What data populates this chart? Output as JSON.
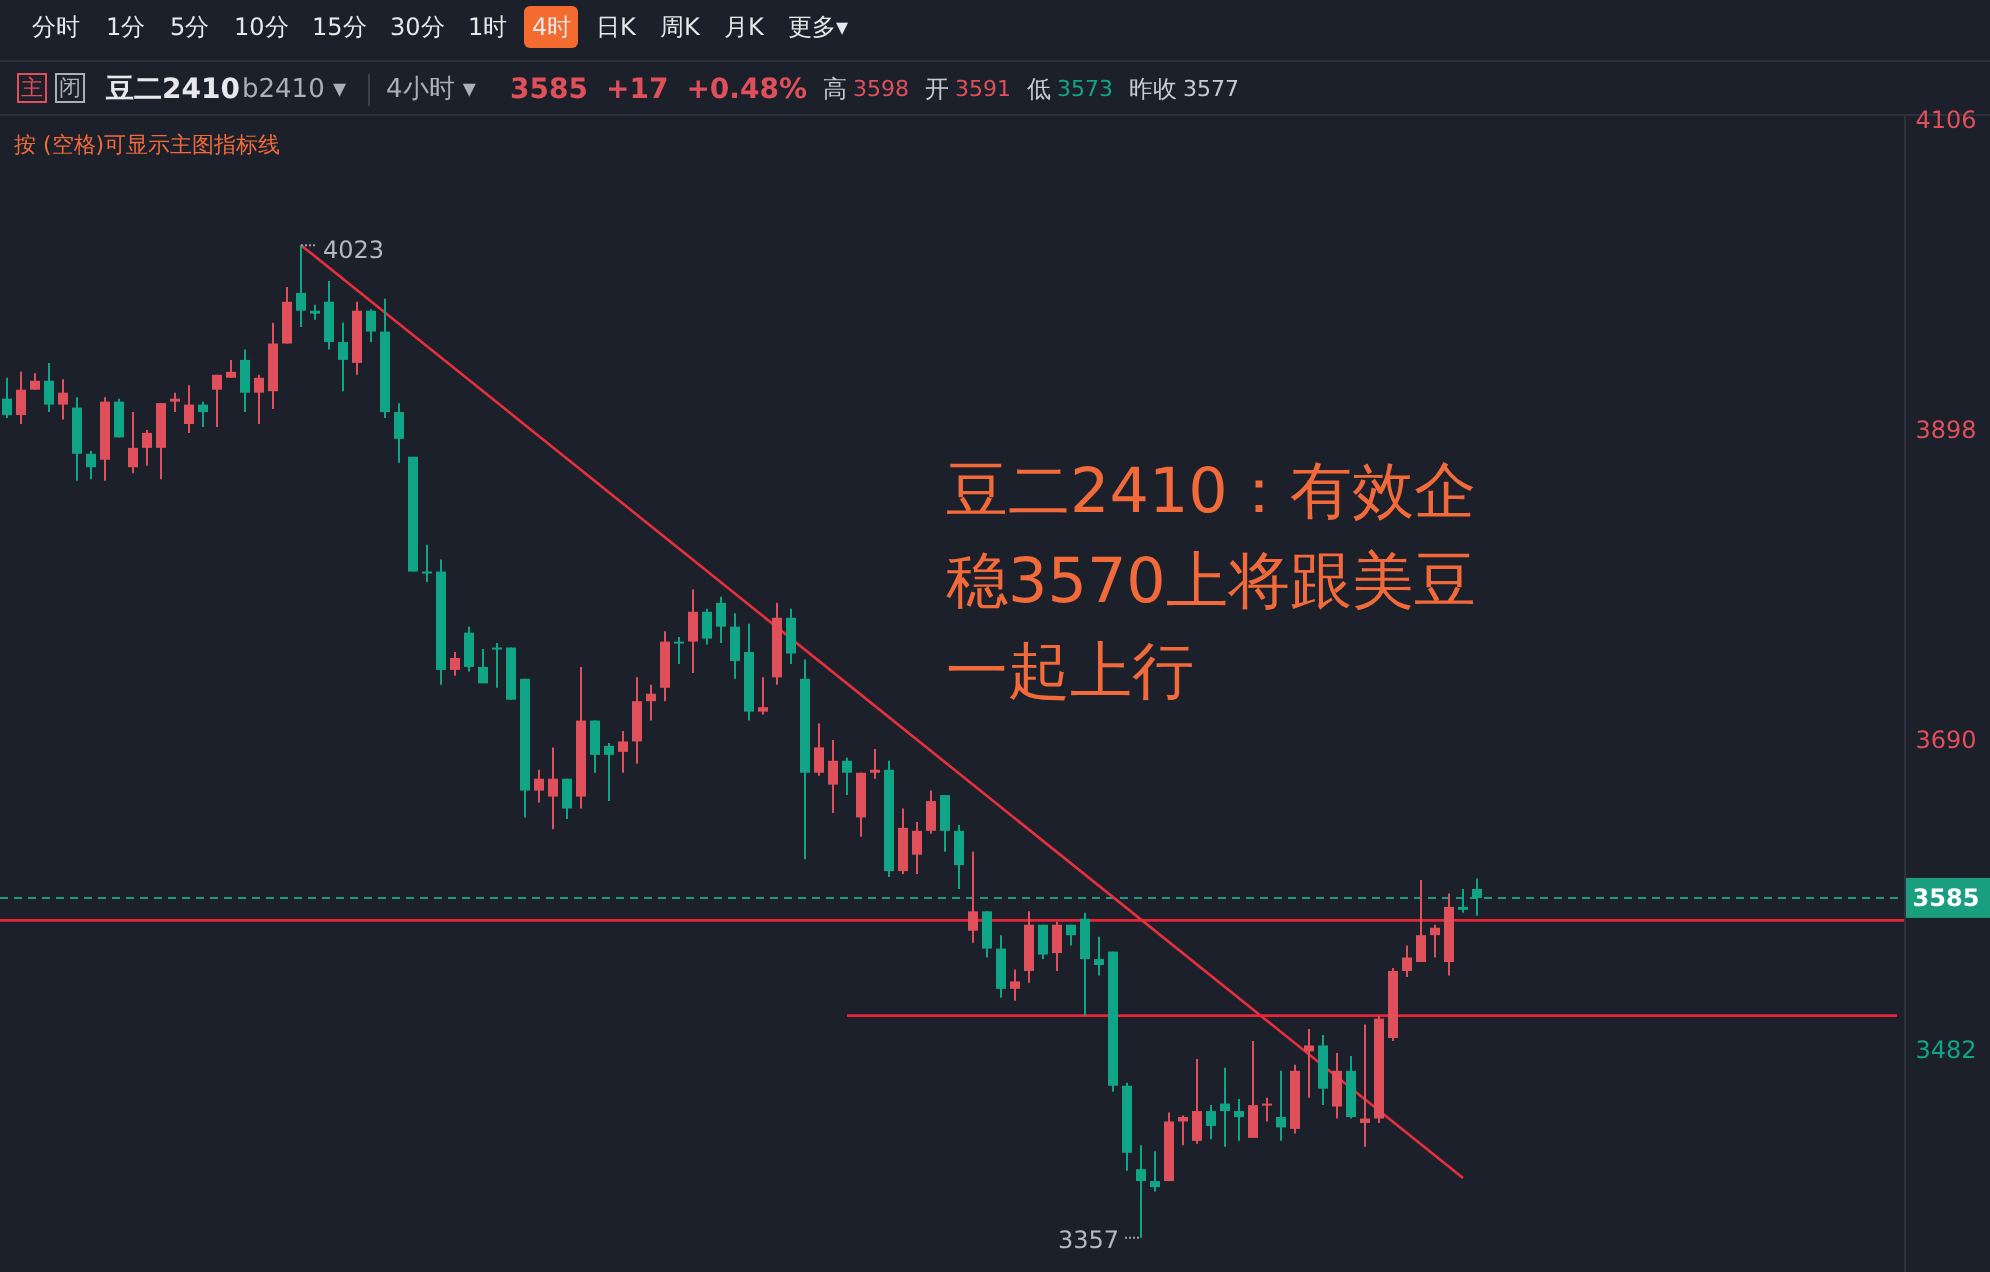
{
  "chart_data": {
    "type": "candlestick",
    "title": "豆二2410",
    "categories": [
      null,
      null,
      null,
      null,
      null,
      null,
      null,
      null,
      null,
      null,
      null,
      null,
      null,
      null,
      null,
      null,
      null,
      null,
      null,
      null,
      null,
      null,
      null,
      null,
      null,
      null,
      null,
      null,
      null,
      null,
      null,
      null,
      null,
      null,
      null,
      null,
      null,
      null,
      null,
      null,
      null,
      null,
      null,
      null,
      null,
      null,
      null,
      null,
      null,
      null,
      null,
      null,
      null,
      null,
      null,
      null,
      null,
      null,
      null,
      null,
      null,
      null,
      null,
      null,
      null,
      null,
      null,
      null,
      null,
      null,
      null,
      null,
      null,
      null,
      null,
      null,
      null,
      null,
      null,
      null,
      null,
      null,
      null,
      null,
      null,
      null,
      null,
      null,
      null,
      null,
      null,
      null,
      null,
      null,
      null,
      null,
      null,
      null,
      null,
      null,
      null,
      null,
      null,
      null,
      null,
      null,
      null,
      null,
      null,
      null,
      null,
      null,
      null,
      null,
      null,
      null,
      null,
      null,
      null,
      null,
      null,
      null,
      null,
      null,
      null,
      null,
      null,
      null,
      null,
      null,
      null,
      null,
      null,
      null,
      null,
      null
    ],
    "ohlc": [
      [
        3920,
        3934,
        3907,
        3909
      ],
      [
        3909,
        3938,
        3903,
        3926
      ],
      [
        3926,
        3937,
        3926,
        3932
      ],
      [
        3932,
        3944,
        3911,
        3916
      ],
      [
        3916,
        3933,
        3906,
        3924
      ],
      [
        3914,
        3921,
        3865,
        3883
      ],
      [
        3883,
        3885,
        3866,
        3874
      ],
      [
        3879,
        3921,
        3865,
        3918
      ],
      [
        3918,
        3920,
        3894,
        3894
      ],
      [
        3874,
        3911,
        3870,
        3887
      ],
      [
        3887,
        3899,
        3875,
        3897
      ],
      [
        3887,
        3917,
        3866,
        3917
      ],
      [
        3918,
        3924,
        3911,
        3920
      ],
      [
        3903,
        3929,
        3897,
        3916
      ],
      [
        3916,
        3918,
        3901,
        3911
      ],
      [
        3926,
        3936,
        3901,
        3936
      ],
      [
        3934,
        3946,
        3934,
        3938
      ],
      [
        3946,
        3953,
        3911,
        3924
      ],
      [
        3924,
        3936,
        3903,
        3934
      ],
      [
        3925,
        3971,
        3913,
        3957
      ],
      [
        3957,
        3995,
        3957,
        3985
      ],
      [
        3991,
        4023,
        3968,
        3979
      ],
      [
        3979,
        3983,
        3973,
        3977
      ],
      [
        3985,
        3999,
        3953,
        3958
      ],
      [
        3958,
        3971,
        3925,
        3946
      ],
      [
        3944,
        3985,
        3936,
        3979
      ],
      [
        3979,
        3980,
        3958,
        3965
      ],
      [
        3965,
        3987,
        3907,
        3911
      ],
      [
        3911,
        3917,
        3877,
        3893
      ],
      [
        3881,
        3881,
        3804,
        3804
      ],
      [
        3804,
        3822,
        3797,
        3803
      ],
      [
        3804,
        3812,
        3728,
        3738
      ],
      [
        3738,
        3750,
        3734,
        3746
      ],
      [
        3763,
        3767,
        3737,
        3740
      ],
      [
        3740,
        3752,
        3729,
        3729
      ],
      [
        3753,
        3756,
        3726,
        3752
      ],
      [
        3753,
        3753,
        3718,
        3718
      ],
      [
        3732,
        3732,
        3639,
        3657
      ],
      [
        3657,
        3671,
        3649,
        3665
      ],
      [
        3653,
        3686,
        3631,
        3665
      ],
      [
        3665,
        3665,
        3638,
        3645
      ],
      [
        3653,
        3740,
        3645,
        3704
      ],
      [
        3704,
        3704,
        3669,
        3681
      ],
      [
        3687,
        3689,
        3650,
        3681
      ],
      [
        3683,
        3697,
        3669,
        3690
      ],
      [
        3690,
        3733,
        3675,
        3717
      ],
      [
        3717,
        3728,
        3704,
        3722
      ],
      [
        3726,
        3764,
        3717,
        3757
      ],
      [
        3757,
        3760,
        3742,
        3756
      ],
      [
        3757,
        3792,
        3736,
        3777
      ],
      [
        3777,
        3779,
        3755,
        3759
      ],
      [
        3783,
        3787,
        3756,
        3767
      ],
      [
        3767,
        3776,
        3732,
        3744
      ],
      [
        3750,
        3769,
        3704,
        3710
      ],
      [
        3710,
        3733,
        3708,
        3713
      ],
      [
        3733,
        3783,
        3728,
        3773
      ],
      [
        3773,
        3779,
        3742,
        3749
      ],
      [
        3732,
        3745,
        3611,
        3669
      ],
      [
        3669,
        3702,
        3667,
        3686
      ],
      [
        3661,
        3691,
        3642,
        3677
      ],
      [
        3677,
        3679,
        3654,
        3669
      ],
      [
        3639,
        3669,
        3626,
        3669
      ],
      [
        3669,
        3685,
        3665,
        3671
      ],
      [
        3671,
        3677,
        3599,
        3603
      ],
      [
        3603,
        3645,
        3601,
        3632
      ],
      [
        3614,
        3636,
        3601,
        3630
      ],
      [
        3630,
        3657,
        3628,
        3650
      ],
      [
        3654,
        3654,
        3616,
        3630
      ],
      [
        3630,
        3634,
        3591,
        3607
      ],
      [
        3563,
        3616,
        3555,
        3576
      ],
      [
        3576,
        3576,
        3545,
        3551
      ],
      [
        3551,
        3560,
        3518,
        3524
      ],
      [
        3524,
        3537,
        3516,
        3529
      ],
      [
        3536,
        3576,
        3528,
        3567
      ],
      [
        3567,
        3567,
        3544,
        3547
      ],
      [
        3548,
        3569,
        3536,
        3567
      ],
      [
        3567,
        3567,
        3553,
        3560
      ],
      [
        3571,
        3575,
        3506,
        3544
      ],
      [
        3544,
        3559,
        3533,
        3540
      ],
      [
        3549,
        3549,
        3455,
        3459
      ],
      [
        3459,
        3461,
        3402,
        3414
      ],
      [
        3403,
        3419,
        3357,
        3395
      ],
      [
        3395,
        3415,
        3388,
        3391
      ],
      [
        3395,
        3441,
        3395,
        3435
      ],
      [
        3435,
        3439,
        3419,
        3438
      ],
      [
        3422,
        3477,
        3420,
        3442
      ],
      [
        3442,
        3446,
        3423,
        3432
      ],
      [
        3447,
        3471,
        3418,
        3442
      ],
      [
        3442,
        3450,
        3422,
        3438
      ],
      [
        3424,
        3489,
        3424,
        3446
      ],
      [
        3446,
        3451,
        3435,
        3447
      ],
      [
        3438,
        3469,
        3422,
        3431
      ],
      [
        3430,
        3473,
        3427,
        3469
      ],
      [
        3482,
        3497,
        3451,
        3486
      ],
      [
        3486,
        3493,
        3446,
        3457
      ],
      [
        3445,
        3481,
        3437,
        3469
      ],
      [
        3469,
        3479,
        3437,
        3438
      ],
      [
        3434,
        3500,
        3418,
        3437
      ],
      [
        3437,
        3506,
        3434,
        3504
      ],
      [
        3491,
        3538,
        3489,
        3536
      ],
      [
        3536,
        3553,
        3532,
        3545
      ],
      [
        3542,
        3597,
        3542,
        3560
      ],
      [
        3560,
        3567,
        3545,
        3565
      ],
      [
        3542,
        3588,
        3533,
        3579
      ],
      [
        3579,
        3591,
        3575,
        3577
      ],
      [
        3591,
        3598,
        3573,
        3585
      ],
      null,
      null,
      null,
      null,
      null,
      null,
      null,
      null,
      null,
      null,
      null,
      null,
      null,
      null,
      null,
      null,
      null,
      null,
      null,
      null,
      null,
      null,
      null,
      null,
      null,
      null,
      null,
      null,
      null,
      null
    ],
    "series": [
      {
        "type": "line",
        "color": "#e8303d",
        "values": [
          null,
          null,
          null,
          null,
          null,
          null,
          null,
          null,
          null,
          null,
          null,
          null,
          null,
          null,
          null,
          null,
          null,
          null,
          null,
          null,
          null,
          4023,
          null,
          null,
          null,
          null,
          null,
          null,
          null,
          null,
          null,
          null,
          null,
          null,
          null,
          null,
          null,
          null,
          null,
          null,
          null,
          null,
          null,
          null,
          null,
          null,
          null,
          null,
          null,
          null,
          null,
          null,
          null,
          null,
          null,
          null,
          null,
          null,
          null,
          null,
          null,
          null,
          null,
          null,
          null,
          null,
          null,
          null,
          null,
          null,
          null,
          null,
          null,
          null,
          null,
          null,
          null,
          null,
          null,
          null,
          null,
          null,
          null,
          null,
          null,
          null,
          null,
          null,
          null,
          null,
          null,
          null,
          null,
          null,
          null,
          null,
          null,
          null,
          null,
          null,
          null,
          null,
          null,
          null,
          3397,
          null,
          null,
          null,
          null,
          null,
          null,
          null,
          null,
          null,
          null,
          null,
          null,
          null,
          null,
          null,
          null,
          null,
          null,
          null,
          null,
          null,
          null,
          null,
          null,
          null,
          null,
          null,
          null,
          null,
          null,
          null
        ]
      },
      {
        "type": "line",
        "color": "#e8233a",
        "values": [
          null,
          null,
          null,
          null,
          null,
          null,
          null,
          null,
          null,
          null,
          null,
          null,
          null,
          null,
          null,
          null,
          null,
          null,
          null,
          null,
          null,
          null,
          null,
          null,
          null,
          null,
          null,
          null,
          null,
          null,
          null,
          null,
          null,
          null,
          null,
          null,
          null,
          null,
          null,
          null,
          null,
          null,
          null,
          null,
          null,
          null,
          null,
          null,
          null,
          null,
          null,
          null,
          null,
          null,
          null,
          null,
          null,
          null,
          null,
          null,
          3506,
          null,
          null,
          null,
          null,
          null,
          null,
          null,
          null,
          null,
          null,
          null,
          null,
          null,
          null,
          null,
          null,
          null,
          null,
          null,
          null,
          null,
          null,
          null,
          null,
          null,
          null,
          null,
          null,
          null,
          null,
          null,
          null,
          null,
          null,
          null,
          null,
          null,
          null,
          null,
          null,
          null,
          null,
          null,
          null,
          null,
          null,
          null,
          null,
          null,
          null,
          null,
          null,
          null,
          null,
          null,
          null,
          null,
          null,
          null,
          null,
          null,
          null,
          null,
          null,
          null,
          null,
          null,
          null,
          null,
          null,
          null,
          null,
          null,
          null,
          3506
        ]
      }
    ],
    "ylim": [
      3334,
      4111
    ],
    "yticks": [
      3482,
      3690,
      3898,
      4106
    ],
    "tick_labels": "y",
    "ref_lines": [
      {
        "axis": "y",
        "value": 3585,
        "label": "3585",
        "color": "#1a9e80",
        "line_style": "dashed"
      },
      {
        "axis": "y",
        "value": 3570,
        "color": "#e8233a",
        "line_style": "solid"
      }
    ],
    "annotations": [
      "分时",
      "1分",
      "5分",
      "10分",
      "15分",
      "30分",
      "1时",
      "4时",
      "日K",
      "周K",
      "月K",
      "更多▾",
      "主",
      "闭",
      "b2410 ▾",
      "4小时 ▾",
      "3585",
      "+17",
      "+0.48%",
      "高",
      "3598",
      "开",
      "3591",
      "低",
      "3573",
      "昨收",
      "3577",
      "按 (空格)可显示主图指标线",
      "豆二2410：有效企稳3570上将跟美豆一起上行",
      "4023",
      "3357"
    ]
  }
}
